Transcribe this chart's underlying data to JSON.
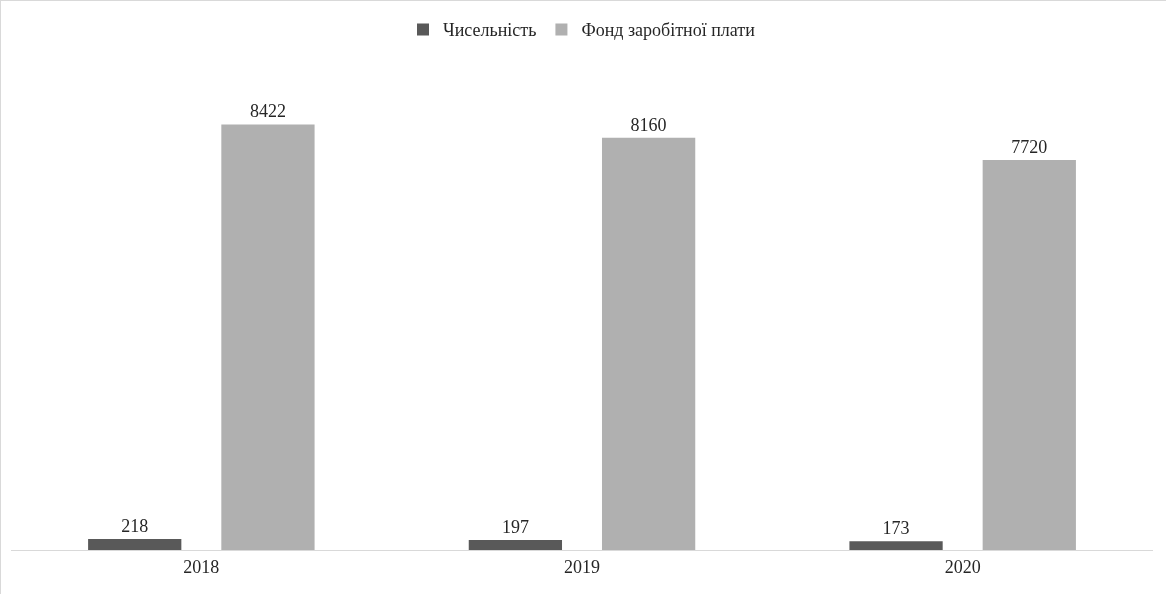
{
  "chart_data": {
    "type": "bar",
    "categories": [
      "2018",
      "2019",
      "2020"
    ],
    "series": [
      {
        "name": "Чисельність",
        "color": "#595959",
        "values": [
          218,
          197,
          173
        ]
      },
      {
        "name": "Фонд заробітної плати",
        "color": "#b0b0b0",
        "values": [
          8422,
          8160,
          7720
        ]
      }
    ],
    "data_labels": true,
    "legend": "top",
    "grid": false
  }
}
